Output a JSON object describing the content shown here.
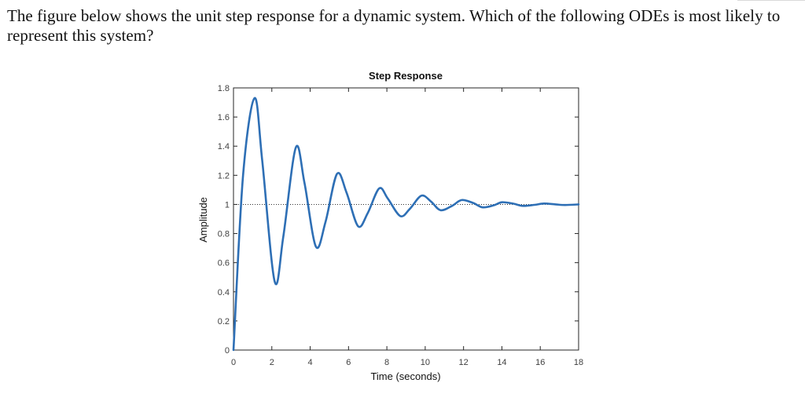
{
  "question": {
    "text": "The figure below shows the unit step response for a dynamic system. Which of the following ODEs is most likely to represent this system?"
  },
  "chart_data": {
    "type": "line",
    "title": "Step Response",
    "xlabel": "Time (seconds)",
    "ylabel": "Amplitude",
    "xlim": [
      0,
      18
    ],
    "ylim": [
      0,
      1.8
    ],
    "xticks": [
      0,
      2,
      4,
      6,
      8,
      10,
      12,
      14,
      16,
      18
    ],
    "yticks": [
      0,
      0.2,
      0.4,
      0.6,
      0.8,
      1,
      1.2,
      1.4,
      1.6,
      1.8
    ],
    "reference_line": {
      "y": 1,
      "style": "dotted"
    },
    "grid": false,
    "line_color": "#2e6fb5",
    "series": [
      {
        "x": [
          0,
          0.5,
          1.1,
          1.5,
          2.15,
          2.6,
          3.25,
          3.7,
          4.3,
          4.8,
          5.4,
          5.9,
          6.5,
          7.0,
          7.6,
          8.05,
          8.7,
          9.2,
          9.8,
          10.3,
          10.8,
          11.4,
          11.9,
          12.5,
          13.0,
          13.6,
          14.0,
          14.6,
          15.1,
          15.7,
          16.2,
          16.8,
          17.3,
          18.0
        ],
        "values": [
          0,
          1.2,
          1.73,
          1.3,
          0.47,
          0.78,
          1.39,
          1.15,
          0.71,
          0.88,
          1.21,
          1.08,
          0.85,
          0.94,
          1.11,
          1.04,
          0.92,
          0.97,
          1.06,
          1.02,
          0.96,
          0.99,
          1.03,
          1.01,
          0.98,
          0.995,
          1.015,
          1.005,
          0.99,
          0.997,
          1.006,
          1.0,
          0.996,
          1.0
        ]
      }
    ]
  }
}
